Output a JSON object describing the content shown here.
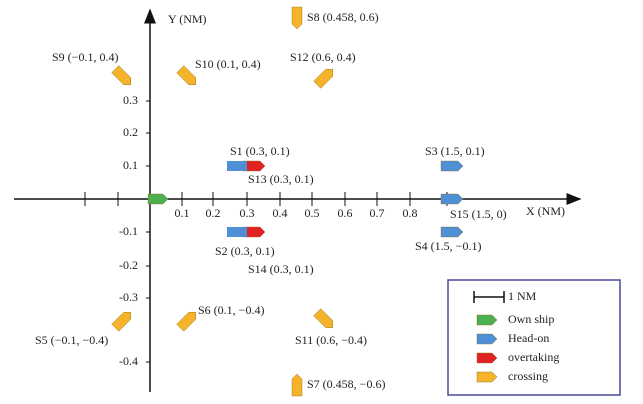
{
  "axes": {
    "x_label": "X (NM)",
    "y_label": "Y (NM)",
    "x_ticks": [
      "0.1",
      "0.2",
      "0.3",
      "0.4",
      "0.5",
      "0.6",
      "0.7",
      "0.8"
    ],
    "y_ticks": [
      "0.3",
      "0.2",
      "0.1",
      "-0.1",
      "-0.2",
      "-0.3",
      "-0.4"
    ]
  },
  "ships": [
    {
      "label": "S8 (0.458, 0.6)"
    },
    {
      "label": "S9 (−0.1, 0.4)"
    },
    {
      "label": "S10 (0.1, 0.4)"
    },
    {
      "label": "S12 (0.6, 0.4)"
    },
    {
      "label": "S1 (0.3, 0.1)"
    },
    {
      "label": "S13 (0.3, 0.1)"
    },
    {
      "label": "S3 (1.5, 0.1)"
    },
    {
      "label": "S15 (1.5, 0)"
    },
    {
      "label": "S2 (0.3, 0.1)"
    },
    {
      "label": "S14 (0.3, 0.1)"
    },
    {
      "label": "S4 (1.5, −0.1)"
    },
    {
      "label": "S5 (−0.1, −0.4)"
    },
    {
      "label": "S6 (0.1, −0.4)"
    },
    {
      "label": "S11 (0.6, −0.4)"
    },
    {
      "label": "S7 (0.458, −0.6)"
    }
  ],
  "legend": {
    "scale": "1 NM",
    "entries": [
      "Own ship",
      "Head-on",
      "overtaking",
      "crossing"
    ]
  }
}
